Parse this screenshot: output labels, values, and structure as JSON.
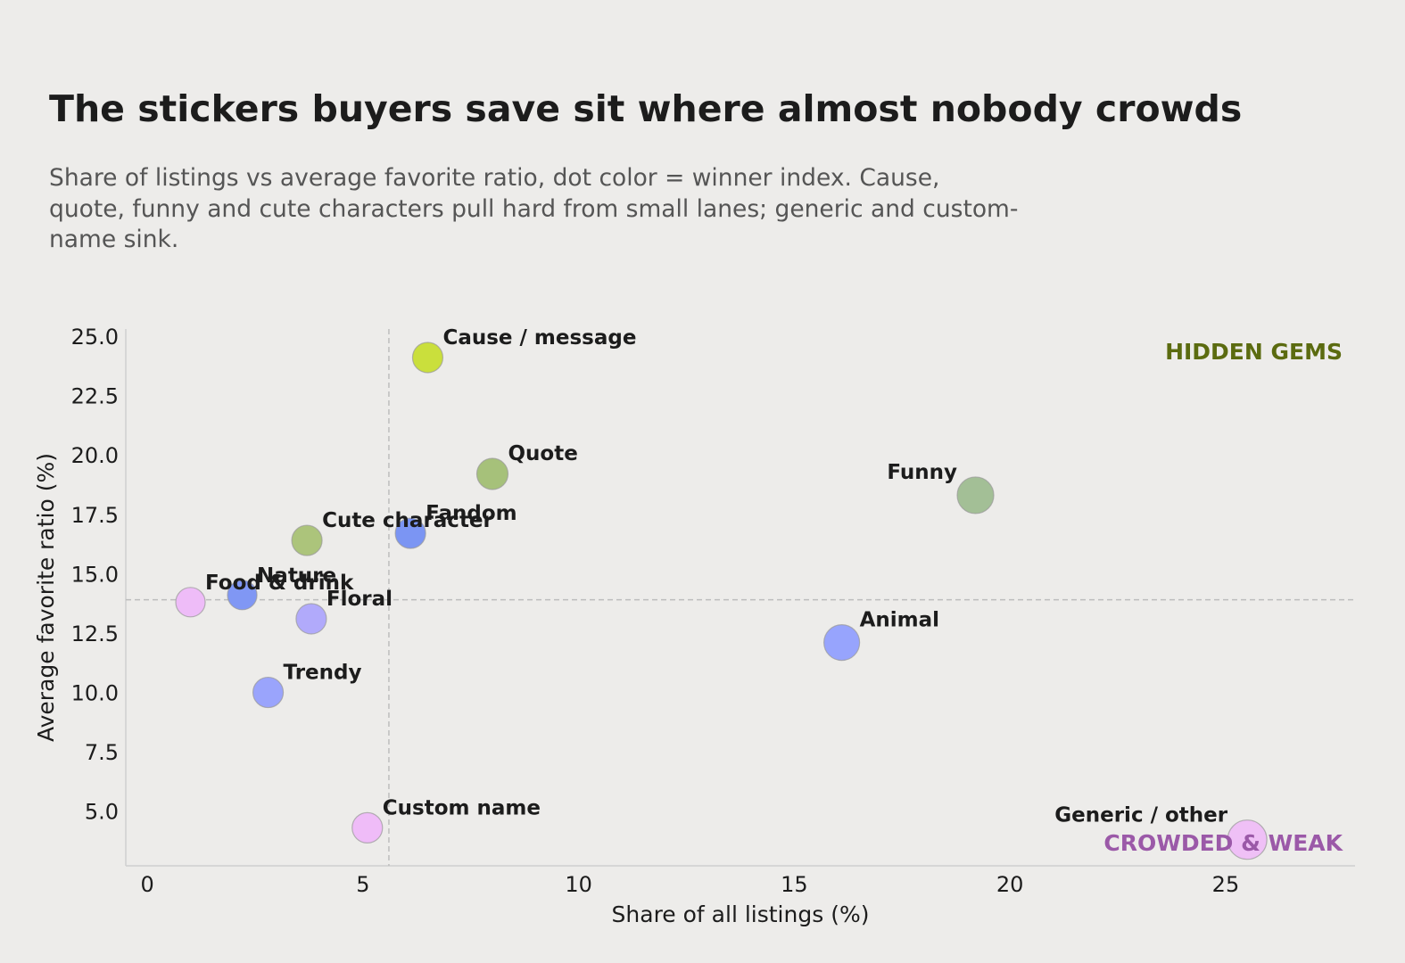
{
  "header": {
    "title": "The stickers buyers save sit where almost nobody crowds",
    "subtitle_lines": [
      "Share of listings vs average favorite ratio, dot color = winner index. Cause,",
      "quote, funny and cute characters pull hard from small lanes; generic and custom-",
      "name sink."
    ]
  },
  "chart_data": {
    "type": "scatter",
    "title": "The stickers buyers save sit where almost nobody crowds",
    "xlabel": "Share of all listings (%)",
    "ylabel": "Average favorite ratio (%)",
    "xlim": [
      -0.5,
      28
    ],
    "ylim": [
      2.7,
      25.3
    ],
    "xticks": [
      "0",
      "5",
      "10",
      "15",
      "20",
      "25"
    ],
    "yticks": [
      "5.0",
      "7.5",
      "10.0",
      "12.5",
      "15.0",
      "17.5",
      "20.0",
      "22.5",
      "25.0"
    ],
    "reference_lines": {
      "x": 5.6,
      "y": 13.9
    },
    "grid": false,
    "corner_labels": {
      "top_right": {
        "text": "HIDDEN GEMS",
        "color": "#5b6b10"
      },
      "bottom_right": {
        "text": "CROWDED & WEAK",
        "color": "#9b59a8"
      }
    },
    "points": [
      {
        "name": "Cause / message",
        "x": 6.5,
        "y": 24.1,
        "size": 0.5,
        "color": "#cadf3c"
      },
      {
        "name": "Quote",
        "x": 8.0,
        "y": 19.2,
        "size": 0.55,
        "color": "#a6c17a"
      },
      {
        "name": "Funny",
        "x": 19.2,
        "y": 18.3,
        "size": 0.85,
        "color": "#a3bf96"
      },
      {
        "name": "Cute character",
        "x": 3.7,
        "y": 16.4,
        "size": 0.5,
        "color": "#acc47b"
      },
      {
        "name": "Fandom",
        "x": 6.1,
        "y": 16.7,
        "size": 0.5,
        "color": "#7b95f3"
      },
      {
        "name": "Food & drink",
        "x": 1.0,
        "y": 13.8,
        "size": 0.45,
        "color": "#eebcf8"
      },
      {
        "name": "Nature",
        "x": 2.2,
        "y": 14.1,
        "size": 0.45,
        "color": "#8097f4"
      },
      {
        "name": "Floral",
        "x": 3.8,
        "y": 13.1,
        "size": 0.5,
        "color": "#b1aafb"
      },
      {
        "name": "Animal",
        "x": 16.1,
        "y": 12.1,
        "size": 0.8,
        "color": "#97a4fd"
      },
      {
        "name": "Trendy",
        "x": 2.8,
        "y": 10.0,
        "size": 0.5,
        "color": "#9aa4fc"
      },
      {
        "name": "Custom name",
        "x": 5.1,
        "y": 4.3,
        "size": 0.5,
        "color": "#efbcf8"
      },
      {
        "name": "Generic / other",
        "x": 25.5,
        "y": 3.8,
        "size": 1.0,
        "color": "#efc0f6"
      }
    ]
  }
}
